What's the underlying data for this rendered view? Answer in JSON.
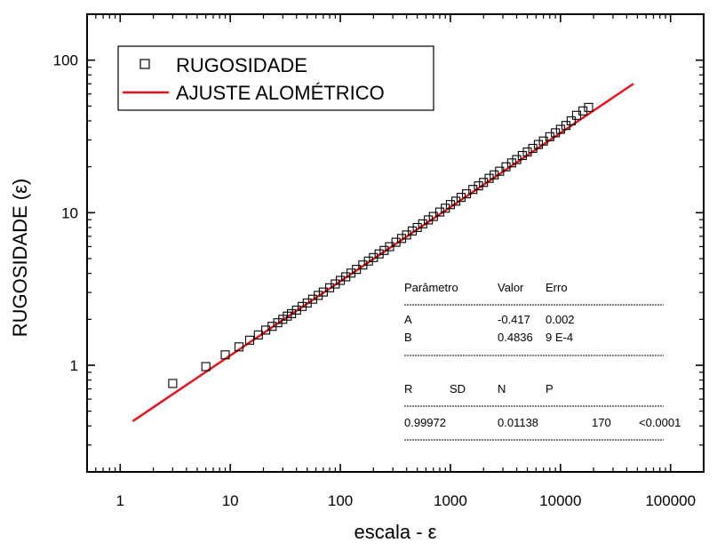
{
  "chart_data": {
    "type": "scatter",
    "xlabel": "escala - ε",
    "ylabel": "RUGOSIDADE (ε)",
    "xscale": "log",
    "yscale": "log",
    "xlim": [
      0.5,
      200000
    ],
    "ylim": [
      0.2,
      200
    ],
    "x_ticks": [
      {
        "value": 1,
        "label": "1"
      },
      {
        "value": 10,
        "label": "10"
      },
      {
        "value": 100,
        "label": "100"
      },
      {
        "value": 1000,
        "label": "1000"
      },
      {
        "value": 10000,
        "label": "10000"
      },
      {
        "value": 100000,
        "label": "100000"
      }
    ],
    "y_ticks": [
      {
        "value": 1,
        "label": "1"
      },
      {
        "value": 10,
        "label": "10"
      },
      {
        "value": 100,
        "label": "100"
      }
    ],
    "legend": {
      "placement": "top-left",
      "entries": [
        {
          "label": "RUGOSIDADE",
          "marker": "open-square",
          "color": "#000000"
        },
        {
          "label": "AJUSTE ALOMÉTRICO",
          "marker": "line",
          "color": "#e8141c"
        }
      ]
    },
    "series": [
      {
        "name": "RUGOSIDADE",
        "kind": "scatter",
        "marker": "open-square",
        "color": "#000000",
        "x": [
          3,
          6,
          9,
          12,
          15,
          18,
          21,
          24,
          27,
          30,
          33,
          36,
          40,
          45,
          50,
          56,
          63,
          70,
          80,
          90,
          100,
          112,
          125,
          140,
          160,
          180,
          200,
          225,
          250,
          280,
          320,
          360,
          400,
          450,
          500,
          560,
          630,
          700,
          800,
          900,
          1000,
          1120,
          1250,
          1400,
          1600,
          1800,
          2000,
          2250,
          2500,
          2800,
          3200,
          3600,
          4000,
          4500,
          5000,
          5600,
          6300,
          7000,
          8000,
          9000,
          10000,
          11200,
          12500,
          14000,
          16000,
          18000
        ],
        "y": [
          0.76,
          0.98,
          1.17,
          1.32,
          1.46,
          1.58,
          1.7,
          1.8,
          1.9,
          2.0,
          2.1,
          2.18,
          2.3,
          2.43,
          2.56,
          2.71,
          2.87,
          3.02,
          3.22,
          3.41,
          3.6,
          3.8,
          4.02,
          4.25,
          4.54,
          4.82,
          5.08,
          5.37,
          5.66,
          5.99,
          6.4,
          6.78,
          7.15,
          7.59,
          8.0,
          8.45,
          8.97,
          9.45,
          10.1,
          10.7,
          11.3,
          11.9,
          12.6,
          13.3,
          14.2,
          15.0,
          15.8,
          16.8,
          17.7,
          18.7,
          20.0,
          21.2,
          22.3,
          23.7,
          25.0,
          26.4,
          28.0,
          29.5,
          31.5,
          33.4,
          35.2,
          37.3,
          40.0,
          43.5,
          46.5,
          49.0
        ]
      },
      {
        "name": "AJUSTE ALOMÉTRICO",
        "kind": "line",
        "color": "#e8141c",
        "x": [
          1.3,
          46000
        ],
        "y": [
          0.43,
          70
        ]
      }
    ],
    "stats_table": {
      "param_headers": [
        "Parâmetro",
        "Valor",
        "Erro"
      ],
      "params": [
        {
          "name": "A",
          "value": "-0.417",
          "error": "0.002"
        },
        {
          "name": "B",
          "value": "0.4836",
          "error": "9 E-4"
        }
      ],
      "fit_headers": [
        "R",
        "SD",
        "N",
        "P"
      ],
      "fit_values": [
        "0.99972",
        "0.01138",
        "170",
        "<0.0001"
      ]
    }
  }
}
